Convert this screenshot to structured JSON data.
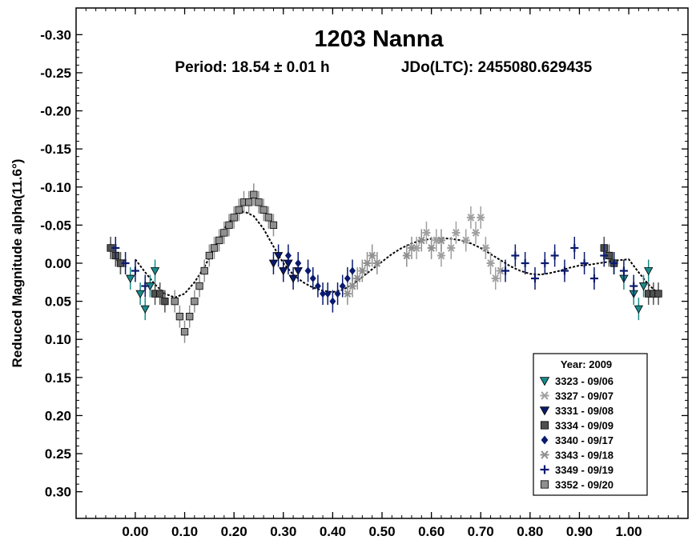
{
  "chart_data": {
    "type": "scatter",
    "title": "1203 Nanna",
    "subtitle_left": "Period: 18.54 ± 0.01 h",
    "subtitle_right": "JDo(LTC): 2455080.629435",
    "ylabel": "Reduced Magnitude alpha(11.6°)",
    "xlabel": "",
    "xlim": [
      -0.12,
      1.12
    ],
    "ylim": [
      -0.335,
      0.335
    ],
    "y_inverted": true,
    "xticks": [
      "0.00",
      "0.10",
      "0.20",
      "0.30",
      "0.40",
      "0.50",
      "0.60",
      "0.70",
      "0.80",
      "0.90",
      "1.00"
    ],
    "xtick_values": [
      0,
      0.1,
      0.2,
      0.3,
      0.4,
      0.5,
      0.6,
      0.7,
      0.8,
      0.9,
      1.0
    ],
    "yticks": [
      "-0.30",
      "-0.25",
      "-0.20",
      "-0.15",
      "-0.10",
      "-0.05",
      "0.00",
      "0.05",
      "0.10",
      "0.15",
      "0.20",
      "0.25",
      "0.30"
    ],
    "ytick_values": [
      -0.3,
      -0.25,
      -0.2,
      -0.15,
      -0.1,
      -0.05,
      0,
      0.05,
      0.1,
      0.15,
      0.2,
      0.25,
      0.3
    ],
    "grid": false,
    "legend_position": "bottom-right",
    "legend_title": "Year: 2009",
    "fit_curve": {
      "color": "#000000",
      "x": [
        0.0,
        0.02,
        0.04,
        0.06,
        0.08,
        0.1,
        0.12,
        0.14,
        0.16,
        0.18,
        0.2,
        0.22,
        0.24,
        0.26,
        0.28,
        0.3,
        0.32,
        0.34,
        0.36,
        0.38,
        0.4,
        0.42,
        0.44,
        0.46,
        0.48,
        0.5,
        0.52,
        0.54,
        0.56,
        0.58,
        0.6,
        0.62,
        0.64,
        0.66,
        0.68,
        0.7,
        0.72,
        0.74,
        0.76,
        0.78,
        0.8,
        0.82,
        0.84,
        0.86,
        0.88,
        0.9,
        0.92,
        0.94,
        0.96,
        0.98,
        1.0,
        1.02,
        1.04,
        1.06
      ],
      "y": [
        -0.005,
        0.012,
        0.028,
        0.04,
        0.045,
        0.04,
        0.025,
        0.005,
        -0.02,
        -0.045,
        -0.062,
        -0.068,
        -0.062,
        -0.045,
        -0.022,
        0.0,
        0.015,
        0.025,
        0.032,
        0.036,
        0.038,
        0.035,
        0.028,
        0.018,
        0.008,
        -0.002,
        -0.012,
        -0.02,
        -0.026,
        -0.03,
        -0.032,
        -0.033,
        -0.032,
        -0.03,
        -0.026,
        -0.02,
        -0.012,
        -0.004,
        0.004,
        0.01,
        0.014,
        0.015,
        0.013,
        0.01,
        0.006,
        0.003,
        0.002,
        0.0,
        -0.002,
        -0.004,
        -0.005,
        0.012,
        0.028,
        0.04
      ]
    },
    "series": [
      {
        "name": "3323 - 09/06",
        "marker": "triangle-down",
        "color": "#1a8a8a",
        "x": [
          -0.03,
          -0.01,
          0.01,
          0.02,
          0.03,
          0.04,
          0.97,
          0.99,
          1.01,
          1.02,
          1.03,
          1.04
        ],
        "y": [
          0.0,
          0.02,
          0.04,
          0.06,
          0.03,
          0.01,
          0.0,
          0.02,
          0.04,
          0.06,
          0.03,
          0.01
        ]
      },
      {
        "name": "3327 - 09/07",
        "marker": "asterisk",
        "color": "#a0a0a0",
        "x": [
          0.57,
          0.59,
          0.61,
          0.62,
          0.64,
          0.65,
          0.67,
          0.68,
          0.69,
          0.7,
          0.71,
          0.72,
          0.73,
          0.74
        ],
        "y": [
          -0.02,
          -0.04,
          -0.03,
          -0.01,
          -0.02,
          -0.04,
          -0.03,
          -0.06,
          -0.04,
          -0.06,
          -0.02,
          0.0,
          0.02,
          0.01
        ]
      },
      {
        "name": "3331 - 09/08",
        "marker": "triangle-down",
        "color": "#0a1a6e",
        "x": [
          0.28,
          0.29,
          0.3,
          0.31,
          0.32,
          0.33
        ],
        "y": [
          0.0,
          -0.01,
          0.01,
          0.0,
          0.02,
          0.01
        ]
      },
      {
        "name": "3334 - 09/09",
        "marker": "square",
        "color": "#505050",
        "x": [
          -0.05,
          -0.04,
          -0.03,
          0.04,
          0.05,
          0.06,
          0.95,
          0.96,
          0.97,
          1.04,
          1.05,
          1.06
        ],
        "y": [
          -0.02,
          -0.01,
          0.0,
          0.04,
          0.04,
          0.05,
          -0.02,
          -0.01,
          0.0,
          0.04,
          0.04,
          0.04
        ]
      },
      {
        "name": "3340 - 09/17",
        "marker": "diamond",
        "color": "#0a1a6e",
        "x": [
          0.31,
          0.33,
          0.35,
          0.36,
          0.37,
          0.38,
          0.39,
          0.4,
          0.41,
          0.42,
          0.43,
          0.44
        ],
        "y": [
          -0.01,
          0.0,
          0.01,
          0.02,
          0.03,
          0.04,
          0.04,
          0.05,
          0.04,
          0.03,
          0.02,
          0.01
        ]
      },
      {
        "name": "3343 - 09/18",
        "marker": "asterisk",
        "color": "#909090",
        "x": [
          0.43,
          0.44,
          0.45,
          0.46,
          0.47,
          0.48,
          0.49,
          0.55,
          0.56,
          0.58,
          0.6,
          0.62
        ],
        "y": [
          0.04,
          0.03,
          0.02,
          0.01,
          0.0,
          -0.01,
          0.0,
          -0.01,
          -0.02,
          -0.03,
          -0.02,
          -0.03
        ]
      },
      {
        "name": "3349 - 09/19",
        "marker": "plus",
        "color": "#0a1a6e",
        "x": [
          -0.04,
          -0.02,
          0.0,
          0.02,
          0.75,
          0.77,
          0.79,
          0.81,
          0.83,
          0.85,
          0.87,
          0.89,
          0.91,
          0.93,
          0.95,
          0.97,
          0.99,
          1.01
        ],
        "y": [
          -0.02,
          0.0,
          0.01,
          0.03,
          0.01,
          -0.01,
          0.0,
          0.02,
          0.0,
          -0.01,
          0.01,
          -0.02,
          0.0,
          0.02,
          -0.01,
          0.0,
          0.01,
          0.03
        ]
      },
      {
        "name": "3352 - 09/20",
        "marker": "square",
        "color": "#909090",
        "x": [
          0.08,
          0.09,
          0.1,
          0.11,
          0.12,
          0.13,
          0.14,
          0.15,
          0.16,
          0.17,
          0.18,
          0.19,
          0.2,
          0.21,
          0.22,
          0.23,
          0.24,
          0.25,
          0.26,
          0.27,
          0.28
        ],
        "y": [
          0.05,
          0.07,
          0.09,
          0.07,
          0.05,
          0.03,
          0.01,
          -0.01,
          -0.02,
          -0.03,
          -0.04,
          -0.05,
          -0.06,
          -0.07,
          -0.08,
          -0.08,
          -0.09,
          -0.08,
          -0.07,
          -0.06,
          -0.05
        ]
      }
    ]
  }
}
